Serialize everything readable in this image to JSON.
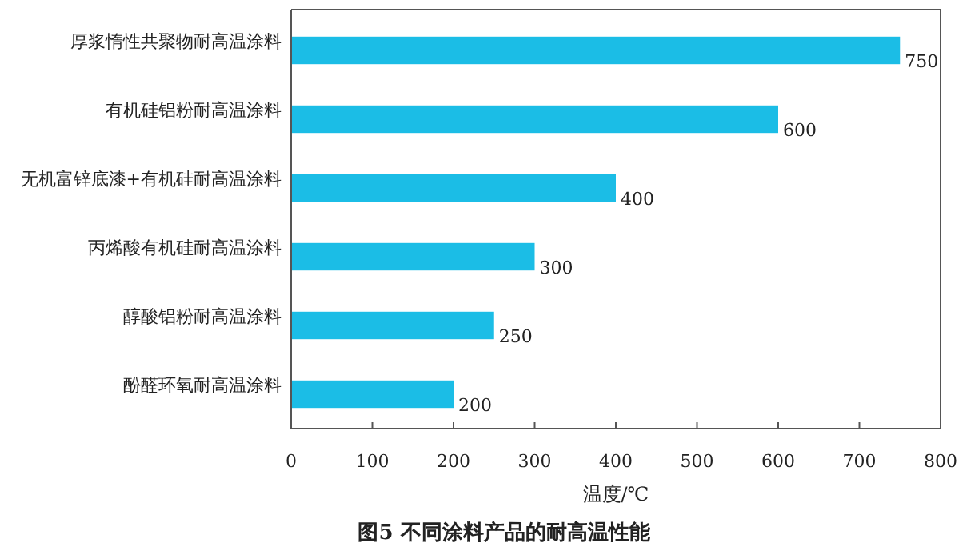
{
  "chart_data": {
    "type": "bar",
    "orientation": "horizontal",
    "title": "图5  不同涂料产品的耐高温性能",
    "xlabel": "温度/℃",
    "categories": [
      "厚浆惰性共聚物耐高温涂料",
      "有机硅铝粉耐高温涂料",
      "无机富锌底漆+有机硅耐高温涂料",
      "丙烯酸有机硅耐高温涂料",
      "醇酸铝粉耐高温涂料",
      "酚醛环氧耐高温涂料"
    ],
    "values": [
      750,
      600,
      400,
      300,
      250,
      200
    ],
    "color": "#1bbde6",
    "xlim": [
      0,
      800
    ],
    "xticks": [
      0,
      100,
      200,
      300,
      400,
      500,
      600,
      700,
      800
    ],
    "data_labels": true
  }
}
